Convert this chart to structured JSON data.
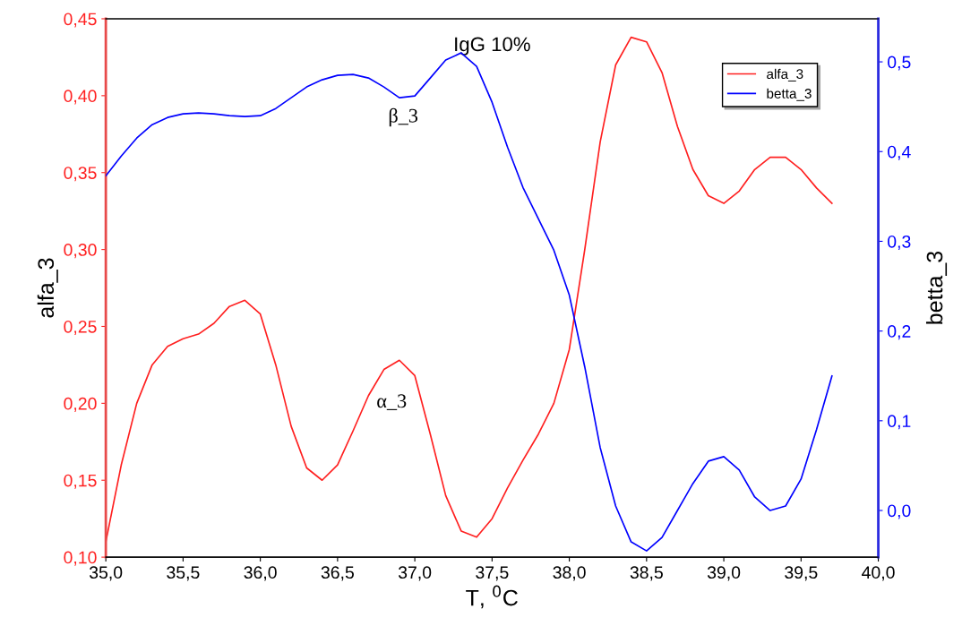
{
  "chart_data": {
    "type": "line",
    "title": "IgG 10%",
    "xlabel": "T, $^{0}$C",
    "ylabel": "alfa_3",
    "y2label": "betta_3",
    "annotations": [
      "β_3",
      "α_3"
    ],
    "legend": "top right",
    "grid": false,
    "marker": "none",
    "line_style": "solid",
    "xlim": [
      35,
      40
    ],
    "xticks": [
      {
        "value": 35,
        "label": "35,0"
      },
      {
        "value": 35.5,
        "label": "35,5"
      },
      {
        "value": 36,
        "label": "36,0"
      },
      {
        "value": 36.5,
        "label": "36,5"
      },
      {
        "value": 37,
        "label": "37,0"
      },
      {
        "value": 37.5,
        "label": "37,5"
      },
      {
        "value": 38,
        "label": "38,0"
      },
      {
        "value": 38.5,
        "label": "38,5"
      },
      {
        "value": 39,
        "label": "39,0"
      },
      {
        "value": 39.5,
        "label": "39,5"
      },
      {
        "value": 40,
        "label": "40,0"
      }
    ],
    "ylim": [
      0.1,
      0.45
    ],
    "yticks": [
      {
        "value": 0.1,
        "label": "0,10"
      },
      {
        "value": 0.15,
        "label": "0,15"
      },
      {
        "value": 0.2,
        "label": "0,20"
      },
      {
        "value": 0.25,
        "label": "0,25"
      },
      {
        "value": 0.3,
        "label": "0,30"
      },
      {
        "value": 0.35,
        "label": "0,35"
      },
      {
        "value": 0.4,
        "label": "0,40"
      },
      {
        "value": 0.45,
        "label": "0,45"
      }
    ],
    "y2lim": [
      -0.052,
      0.548
    ],
    "y2ticks": [
      {
        "value": 0,
        "label": "0,0"
      },
      {
        "value": 0.1,
        "label": "0,1"
      },
      {
        "value": 0.2,
        "label": "0,2"
      },
      {
        "value": 0.3,
        "label": "0,3"
      },
      {
        "value": 0.4,
        "label": "0,4"
      },
      {
        "value": 0.5,
        "label": "0,5"
      }
    ],
    "x": [
      35.0,
      35.1,
      35.2,
      35.3,
      35.4,
      35.5,
      35.6,
      35.7,
      35.8,
      35.9,
      36.0,
      36.1,
      36.2,
      36.3,
      36.4,
      36.5,
      36.6,
      36.7,
      36.8,
      36.9,
      37.0,
      37.1,
      37.2,
      37.3,
      37.4,
      37.5,
      37.6,
      37.7,
      37.8,
      37.9,
      38.0,
      38.1,
      38.2,
      38.3,
      38.4,
      38.5,
      38.6,
      38.7,
      38.8,
      38.9,
      39.0,
      39.1,
      39.2,
      39.3,
      39.4,
      39.5,
      39.6,
      39.7
    ],
    "series": [
      {
        "name": "alfa_3",
        "color": "#ff2020",
        "values": [
          0.11,
          0.16,
          0.2,
          0.225,
          0.237,
          0.242,
          0.245,
          0.252,
          0.263,
          0.267,
          0.258,
          0.225,
          0.185,
          0.158,
          0.15,
          0.16,
          0.182,
          0.205,
          0.222,
          0.228,
          0.218,
          0.18,
          0.14,
          0.117,
          0.113,
          0.125,
          0.145,
          0.163,
          0.18,
          0.2,
          0.235,
          0.3,
          0.37,
          0.42,
          0.438,
          0.435,
          0.415,
          0.38,
          0.352,
          0.335,
          0.33,
          0.338,
          0.352,
          0.36,
          0.36,
          0.352,
          0.34,
          0.33
        ]
      },
      {
        "name": "betta_3",
        "color": "#0000ff",
        "axis": "y2",
        "values": [
          0.373,
          0.395,
          0.415,
          0.43,
          0.438,
          0.442,
          0.443,
          0.442,
          0.44,
          0.439,
          0.44,
          0.448,
          0.46,
          0.472,
          0.48,
          0.485,
          0.486,
          0.482,
          0.472,
          0.46,
          0.462,
          0.482,
          0.502,
          0.51,
          0.495,
          0.455,
          0.405,
          0.36,
          0.325,
          0.29,
          0.24,
          0.16,
          0.07,
          0.005,
          -0.035,
          -0.045,
          -0.03,
          0.0,
          0.03,
          0.055,
          0.06,
          0.045,
          0.015,
          0.0,
          0.005,
          0.035,
          0.09,
          0.15
        ]
      }
    ]
  }
}
